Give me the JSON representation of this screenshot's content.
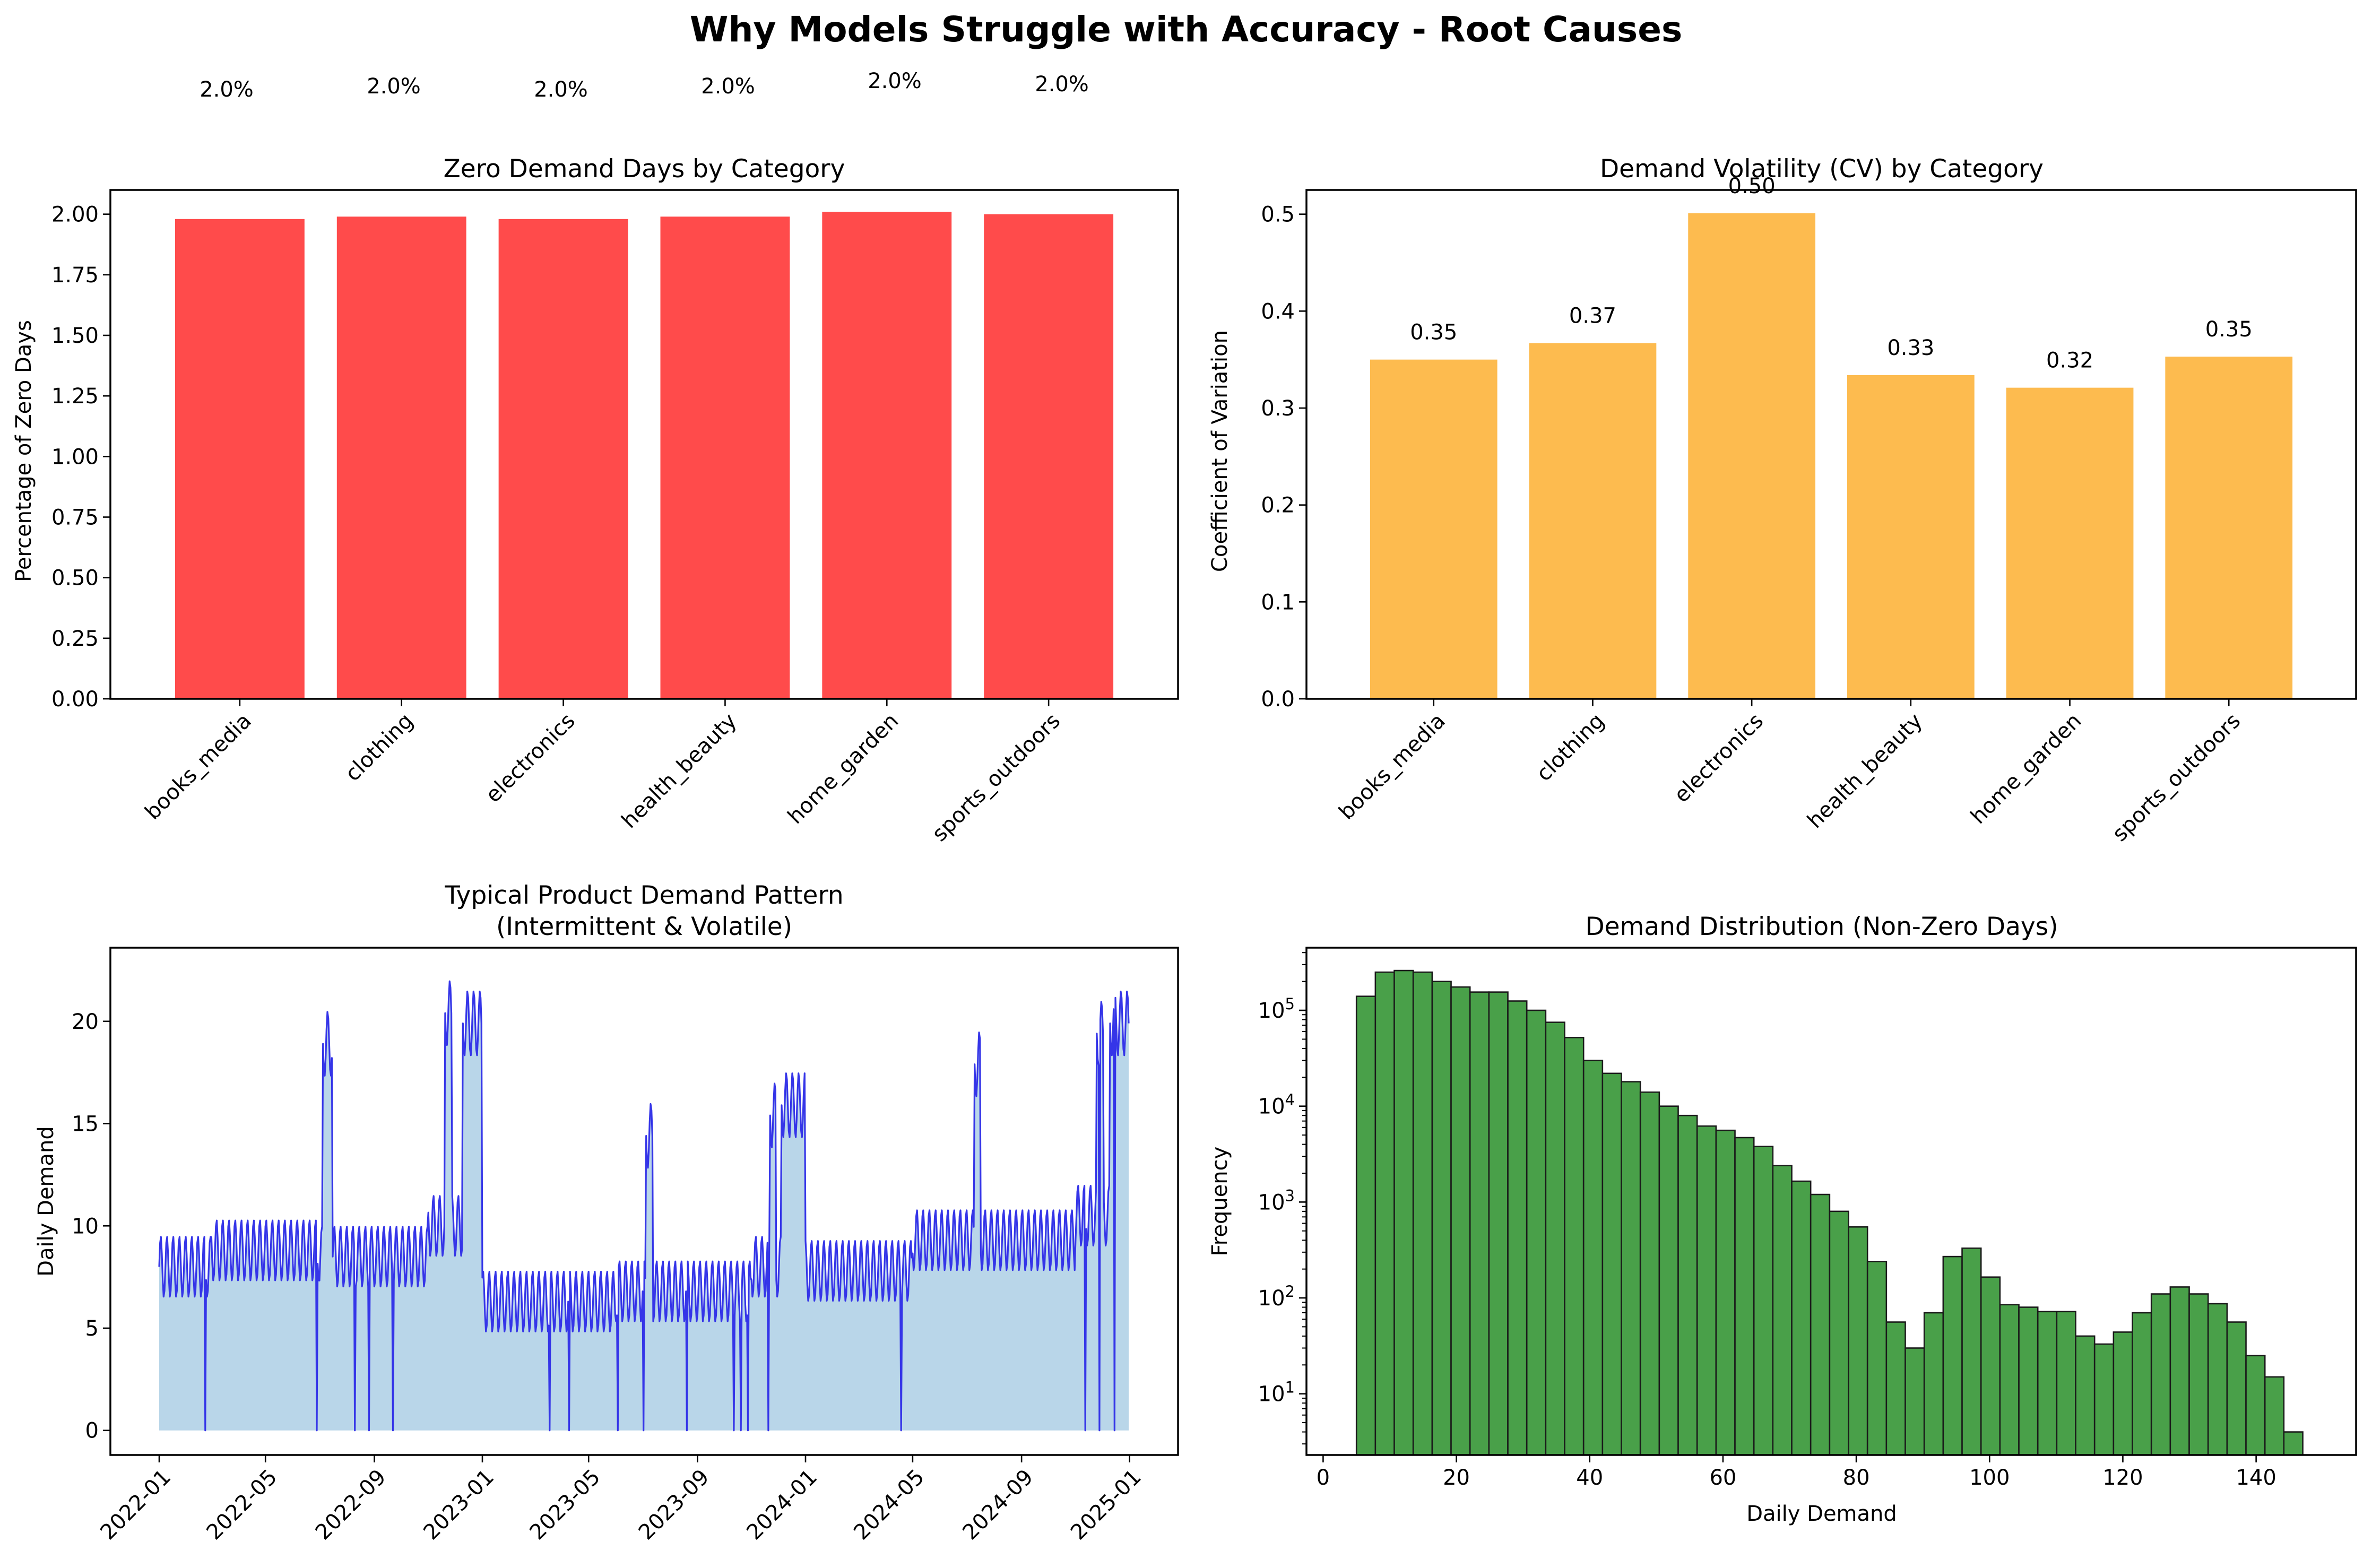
{
  "figure": {
    "title": "Why Models Struggle with Accuracy - Root Causes",
    "top_annotations": [
      "2.0%",
      "2.0%",
      "2.0%",
      "2.0%",
      "2.0%",
      "2.0%"
    ]
  },
  "colors": {
    "zero_bar": "#ff4b4b",
    "cv_bar": "#fdbb4f",
    "line": "#3535e8",
    "fill": "#b9d6e9",
    "hist_bar": "#49a049",
    "hist_edge": "#1a1a1a"
  },
  "chart_data": [
    {
      "type": "bar",
      "title": "Zero Demand Days by Category",
      "xlabel": "",
      "ylabel": "Percentage of Zero Days",
      "categories": [
        "books_media",
        "clothing",
        "electronics",
        "health_beauty",
        "home_garden",
        "sports_outdoors"
      ],
      "values": [
        1.98,
        1.99,
        1.98,
        1.99,
        2.01,
        2.0
      ],
      "ylim": [
        0,
        2.1
      ],
      "yticks": [
        "0.00",
        "0.25",
        "0.50",
        "0.75",
        "1.00",
        "1.25",
        "1.50",
        "1.75",
        "2.00"
      ],
      "data_labels": [
        "2.0%",
        "2.0%",
        "2.0%",
        "2.0%",
        "2.0%",
        "2.0%"
      ],
      "grid": false
    },
    {
      "type": "bar",
      "title": "Demand Volatility (CV) by Category",
      "xlabel": "",
      "ylabel": "Coefficient of Variation",
      "categories": [
        "books_media",
        "clothing",
        "electronics",
        "health_beauty",
        "home_garden",
        "sports_outdoors"
      ],
      "values": [
        0.35,
        0.367,
        0.501,
        0.334,
        0.321,
        0.353
      ],
      "ylim": [
        0,
        0.525
      ],
      "yticks": [
        "0.0",
        "0.1",
        "0.2",
        "0.3",
        "0.4",
        "0.5"
      ],
      "data_labels": [
        "0.35",
        "0.37",
        "0.50",
        "0.33",
        "0.32",
        "0.35"
      ],
      "grid": false
    },
    {
      "type": "area",
      "title": "Typical Product Demand Pattern\n(Intermittent & Volatile)",
      "title_lines": [
        "Typical Product Demand Pattern",
        "(Intermittent & Volatile)"
      ],
      "xlabel": "",
      "ylabel": "Daily Demand",
      "x_range": [
        "2022-01-01",
        "2024-12-31"
      ],
      "ylim": [
        -1.2,
        23.6
      ],
      "yticks": [
        "0",
        "5",
        "10",
        "15",
        "20"
      ],
      "xticks": [
        "2022-01",
        "2022-05",
        "2022-09",
        "2023-01",
        "2023-05",
        "2023-09",
        "2024-01",
        "2024-05",
        "2024-09",
        "2025-01"
      ],
      "baseline_levels": [
        {
          "from": "2022-01-01",
          "to": "2022-02-28",
          "value": 8.0
        },
        {
          "from": "2022-03-01",
          "to": "2022-06-30",
          "value": 8.8
        },
        {
          "from": "2022-07-01",
          "to": "2022-10-31",
          "value": 8.5
        },
        {
          "from": "2022-11-01",
          "to": "2022-12-31",
          "value": 10.0
        },
        {
          "from": "2023-01-01",
          "to": "2023-05-31",
          "value": 6.3
        },
        {
          "from": "2023-06-01",
          "to": "2023-10-31",
          "value": 6.8
        },
        {
          "from": "2023-11-01",
          "to": "2023-12-31",
          "value": 8.0
        },
        {
          "from": "2024-01-01",
          "to": "2024-04-30",
          "value": 7.8
        },
        {
          "from": "2024-05-01",
          "to": "2024-10-31",
          "value": 9.3
        },
        {
          "from": "2024-11-01",
          "to": "2024-12-31",
          "value": 10.5
        }
      ],
      "weekly_amplitude": 1.5,
      "spikes": [
        {
          "from": "2022-07-05",
          "to": "2022-07-15",
          "value": 20.5
        },
        {
          "from": "2022-11-20",
          "to": "2022-11-27",
          "value": 22.0
        },
        {
          "from": "2022-12-10",
          "to": "2022-12-31",
          "value": 21.5
        },
        {
          "from": "2023-07-05",
          "to": "2023-07-12",
          "value": 16.0
        },
        {
          "from": "2023-11-22",
          "to": "2023-11-28",
          "value": 17.0
        },
        {
          "from": "2023-12-05",
          "to": "2023-12-31",
          "value": 17.5
        },
        {
          "from": "2024-07-10",
          "to": "2024-07-16",
          "value": 19.5
        },
        {
          "from": "2024-11-25",
          "to": "2024-12-02",
          "value": 21.0
        },
        {
          "from": "2024-12-10",
          "to": "2024-12-31",
          "value": 21.5
        }
      ],
      "zero_days": [
        "2022-02-22",
        "2022-06-28",
        "2022-08-10",
        "2022-08-26",
        "2022-09-22",
        "2023-03-18",
        "2023-04-09",
        "2023-06-03",
        "2023-07-02",
        "2023-08-20",
        "2023-10-12",
        "2023-10-20",
        "2023-10-28",
        "2023-11-20",
        "2024-04-18",
        "2024-11-12",
        "2024-11-28",
        "2024-12-15"
      ]
    },
    {
      "type": "bar",
      "subtype": "histogram",
      "title": "Demand Distribution (Non-Zero Days)",
      "xlabel": "Daily Demand",
      "ylabel": "Frequency",
      "yscale": "log",
      "ylim": [
        2.3,
        450000
      ],
      "xlim": [
        -2.5,
        155
      ],
      "xticks": [
        "0",
        "20",
        "40",
        "60",
        "80",
        "100",
        "120",
        "140"
      ],
      "yticks": [
        {
          "base": "10",
          "exp": "1"
        },
        {
          "base": "10",
          "exp": "2"
        },
        {
          "base": "10",
          "exp": "3"
        },
        {
          "base": "10",
          "exp": "4"
        },
        {
          "base": "10",
          "exp": "5"
        }
      ],
      "bin_start": 5,
      "bin_width": 2.84,
      "counts": [
        140000,
        250000,
        260000,
        250000,
        200000,
        175000,
        155000,
        155000,
        125000,
        100000,
        75000,
        52000,
        30000,
        22000,
        18000,
        14000,
        10000,
        8000,
        6200,
        5600,
        4700,
        3800,
        2400,
        1650,
        1200,
        800,
        550,
        240,
        56,
        30,
        70,
        270,
        330,
        165,
        85,
        80,
        72,
        72,
        40,
        33,
        44,
        70,
        110,
        130,
        110,
        87,
        56,
        25,
        15,
        4
      ]
    }
  ]
}
